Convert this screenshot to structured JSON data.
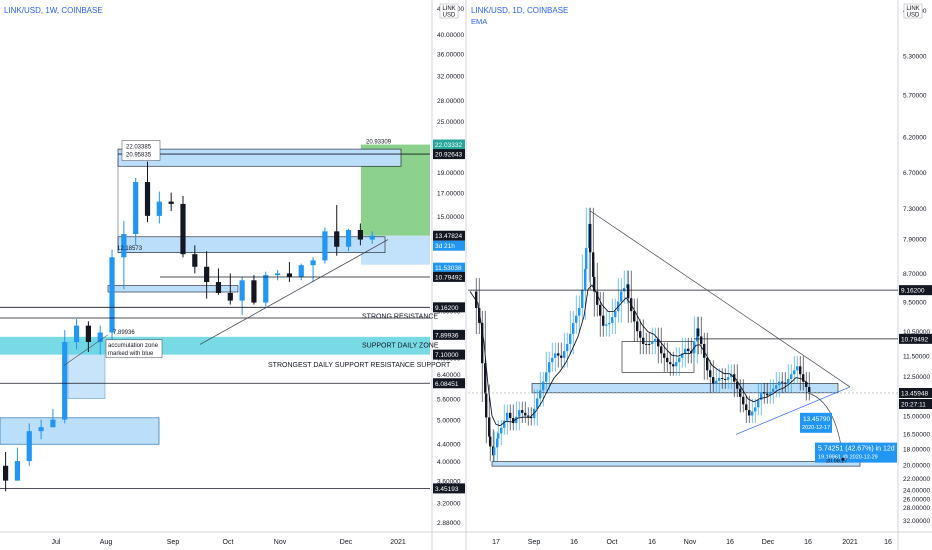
{
  "colors": {
    "up": "#2196f3",
    "down": "#131722",
    "zone_fill": "#bbdefb",
    "zone_stroke": "#0b5d9e",
    "support_zone": "#5fd3e0",
    "profit_zone": "#66c266",
    "axis_text": "#131722",
    "price_tag_blue": "#2196f3",
    "price_tag_black": "#131722",
    "price_tag_green": "#26a69a",
    "line": "#434651",
    "ema": "#131722"
  },
  "left_chart": {
    "title": "LINK/USD, 1W, COINBASE",
    "price_axis": [
      "46.00000",
      "40.00000",
      "36.00000",
      "32.00000",
      "28.00000",
      "25.00000",
      "22.00000",
      "19.00000",
      "17.00000",
      "15.00000",
      "13.00000",
      "11.00000",
      "9.00000",
      "8.00000",
      "7.00000",
      "6.40000",
      "5.60000",
      "5.00000",
      "4.40000",
      "4.00000",
      "3.60000",
      "3.20000",
      "2.88000"
    ],
    "time_axis": [
      "Jul",
      "Aug",
      "Sep",
      "Oct",
      "Nov",
      "Dec",
      "2021"
    ],
    "price_tags": [
      {
        "label": "22.03332",
        "kind": "green"
      },
      {
        "label": "20.92643",
        "kind": "black"
      },
      {
        "label": "13.47824",
        "kind": "black"
      },
      {
        "label": "3d 21h",
        "kind": "blue"
      },
      {
        "label": "11.53038",
        "kind": "blue"
      },
      {
        "label": "10.79492",
        "kind": "black"
      },
      {
        "label": "9.16200",
        "kind": "black"
      },
      {
        "label": "7.89936",
        "kind": "black"
      },
      {
        "label": "7.10000",
        "kind": "black"
      },
      {
        "label": "6.08451",
        "kind": "black"
      },
      {
        "label": "3.45193",
        "kind": "black"
      }
    ],
    "annotations": {
      "strong_resistance": "STRONG RESISTANCE",
      "support_daily_zone": "SUPPORT DAILY ZONE",
      "strongest_support": "STRONGEST DAILY SUPPORT RESISTANCE SUPPORT",
      "accumulation_line1": "accumulation zone",
      "accumulation_line2": "marked with blue",
      "label_22_03": "22.03385",
      "label_20_9": "20.95835",
      "label_12_1": "12.18573",
      "label_7_89": "7.89936",
      "label_20_93": "20.93309"
    }
  },
  "right_chart": {
    "title": "LINK/USD, 1D, COINBASE",
    "indicator": "EMA",
    "price_axis": [
      "4.90000",
      "5.30000",
      "5.70000",
      "6.20000",
      "6.70000",
      "7.30000",
      "7.90000",
      "8.70000",
      "9.50000",
      "10.50000",
      "11.50000",
      "12.50000",
      "13.50000",
      "15.00000",
      "16.50000",
      "18.00000",
      "20.00000",
      "22.00000",
      "24.00000",
      "26.00000",
      "28.00000",
      "32.00000"
    ],
    "time_axis": [
      "17",
      "Sep",
      "16",
      "Oct",
      "16",
      "Nov",
      "16",
      "Dec",
      "16",
      "2021",
      "16"
    ],
    "price_tags": [
      {
        "label": "9.16200",
        "kind": "black"
      },
      {
        "label": "10.79492",
        "kind": "black"
      },
      {
        "label": "13.45948",
        "kind": "black"
      },
      {
        "label": "20:27:11",
        "kind": "black"
      }
    ],
    "measure": {
      "price": "13.45790",
      "date": "2020-12-17",
      "projection": "5.74251 (42.67%) in 12d",
      "projection_sub": "19.19961 @ 2020-12-29",
      "projection_bottom": "20.08.27"
    }
  },
  "chart_data": [
    {
      "type": "candlestick",
      "title": "LINK/USD, 1W, COINBASE",
      "x_ticks": [
        "Jul",
        "Aug",
        "Sep",
        "Oct",
        "Nov",
        "Dec",
        "2021"
      ],
      "ylim": [
        2.88,
        46
      ],
      "y_scale": "log",
      "candles": [
        {
          "o": 3.9,
          "h": 4.2,
          "l": 3.4,
          "c": 3.6
        },
        {
          "o": 3.6,
          "h": 4.3,
          "l": 3.6,
          "c": 4.0
        },
        {
          "o": 4.0,
          "h": 4.9,
          "l": 3.9,
          "c": 4.7
        },
        {
          "o": 4.7,
          "h": 5.0,
          "l": 4.5,
          "c": 4.8
        },
        {
          "o": 4.8,
          "h": 5.3,
          "l": 4.8,
          "c": 5.0
        },
        {
          "o": 5.0,
          "h": 8.1,
          "l": 4.9,
          "c": 7.6
        },
        {
          "o": 7.6,
          "h": 8.6,
          "l": 7.3,
          "c": 8.3
        },
        {
          "o": 8.3,
          "h": 8.5,
          "l": 7.2,
          "c": 7.6
        },
        {
          "o": 7.6,
          "h": 8.3,
          "l": 7.1,
          "c": 8.0
        },
        {
          "o": 8.0,
          "h": 12.5,
          "l": 7.6,
          "c": 12.0
        },
        {
          "o": 12.0,
          "h": 14.6,
          "l": 10.1,
          "c": 13.6
        },
        {
          "o": 13.6,
          "h": 18.4,
          "l": 12.8,
          "c": 18.0
        },
        {
          "o": 18.0,
          "h": 20.1,
          "l": 14.5,
          "c": 15.0
        },
        {
          "o": 15.0,
          "h": 17.1,
          "l": 14.4,
          "c": 16.2
        },
        {
          "o": 16.2,
          "h": 17.0,
          "l": 15.4,
          "c": 16.0
        },
        {
          "o": 16.0,
          "h": 16.7,
          "l": 12.0,
          "c": 12.2
        },
        {
          "o": 12.2,
          "h": 12.8,
          "l": 11.0,
          "c": 11.4
        },
        {
          "o": 11.4,
          "h": 12.4,
          "l": 9.6,
          "c": 10.5
        },
        {
          "o": 10.5,
          "h": 11.3,
          "l": 9.8,
          "c": 9.9
        },
        {
          "o": 9.9,
          "h": 11.0,
          "l": 9.3,
          "c": 9.5
        },
        {
          "o": 9.5,
          "h": 10.8,
          "l": 8.8,
          "c": 10.6
        },
        {
          "o": 10.6,
          "h": 10.9,
          "l": 9.3,
          "c": 9.4
        },
        {
          "o": 9.4,
          "h": 11.1,
          "l": 9.2,
          "c": 10.9
        },
        {
          "o": 10.9,
          "h": 11.2,
          "l": 10.6,
          "c": 11.0
        },
        {
          "o": 11.0,
          "h": 11.7,
          "l": 10.5,
          "c": 10.8
        },
        {
          "o": 10.8,
          "h": 11.6,
          "l": 10.6,
          "c": 11.5
        },
        {
          "o": 11.5,
          "h": 12.0,
          "l": 10.5,
          "c": 11.8
        },
        {
          "o": 11.8,
          "h": 14.1,
          "l": 11.6,
          "c": 13.8
        },
        {
          "o": 13.8,
          "h": 15.9,
          "l": 12.1,
          "c": 12.7
        },
        {
          "o": 12.7,
          "h": 14.0,
          "l": 12.4,
          "c": 13.9
        },
        {
          "o": 13.9,
          "h": 14.4,
          "l": 12.8,
          "c": 13.2
        },
        {
          "o": 13.2,
          "h": 13.8,
          "l": 12.9,
          "c": 13.48
        }
      ],
      "lines": {
        "strong_resistance": 9.162,
        "support_daily_zone": [
          7.1,
          7.9
        ],
        "strongest_support": 6.08451,
        "box_top": 20.93,
        "box_bottom": 10.79,
        "support_3_45": 3.45193
      },
      "zones": {
        "profit": [
          13.48,
          22.03
        ],
        "risk": [
          11.53,
          13.48
        ]
      }
    },
    {
      "type": "candlestick",
      "title": "LINK/USD, 1D, COINBASE",
      "x_ticks": [
        "17",
        "Sep",
        "16",
        "Oct",
        "16",
        "Nov",
        "16",
        "Dec",
        "16",
        "2021",
        "16"
      ],
      "ylim": [
        4.9,
        32
      ],
      "y_scale": "inverted-reciprocal",
      "series": [
        {
          "name": "EMA"
        }
      ],
      "levels": {
        "resistance_9_16": 9.162,
        "resistance_10_79": 10.79492,
        "current": 13.45948,
        "target": 19.19961
      },
      "measure": {
        "from": 13.4579,
        "to": 19.19961,
        "change": 5.74251,
        "percent": 42.67,
        "days": 12
      }
    }
  ]
}
